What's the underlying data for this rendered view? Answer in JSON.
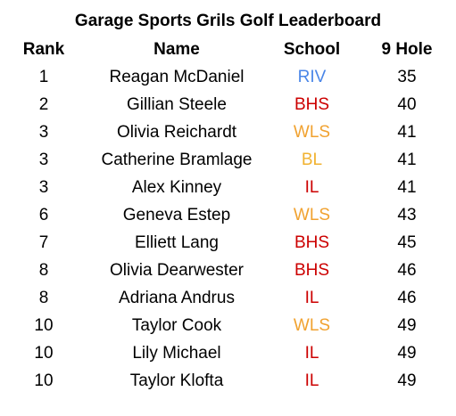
{
  "title": "Garage Sports Grils Golf Leaderboard",
  "headers": {
    "rank": "Rank",
    "name": "Name",
    "school": "School",
    "hole": "9 Hole"
  },
  "school_colors": {
    "RIV": "#4a86e8",
    "BHS": "#cc0000",
    "WLS": "#f1a230",
    "BL": "#f1b230",
    "IL": "#cc0000"
  },
  "rows": [
    {
      "rank": "1",
      "name": "Reagan McDaniel",
      "school": "RIV",
      "score": "35"
    },
    {
      "rank": "2",
      "name": "Gillian Steele",
      "school": "BHS",
      "score": "40"
    },
    {
      "rank": "3",
      "name": "Olivia Reichardt",
      "school": "WLS",
      "score": "41"
    },
    {
      "rank": "3",
      "name": "Catherine Bramlage",
      "school": "BL",
      "score": "41"
    },
    {
      "rank": "3",
      "name": "Alex Kinney",
      "school": "IL",
      "score": "41"
    },
    {
      "rank": "6",
      "name": "Geneva Estep",
      "school": "WLS",
      "score": "43"
    },
    {
      "rank": "7",
      "name": "Elliett Lang",
      "school": "BHS",
      "score": "45"
    },
    {
      "rank": "8",
      "name": "Olivia Dearwester",
      "school": "BHS",
      "score": "46"
    },
    {
      "rank": "8",
      "name": "Adriana Andrus",
      "school": "IL",
      "score": "46"
    },
    {
      "rank": "10",
      "name": "Taylor Cook",
      "school": "WLS",
      "score": "49"
    },
    {
      "rank": "10",
      "name": "Lily Michael",
      "school": "IL",
      "score": "49"
    },
    {
      "rank": "10",
      "name": "Taylor Klofta",
      "school": "IL",
      "score": "49"
    }
  ]
}
